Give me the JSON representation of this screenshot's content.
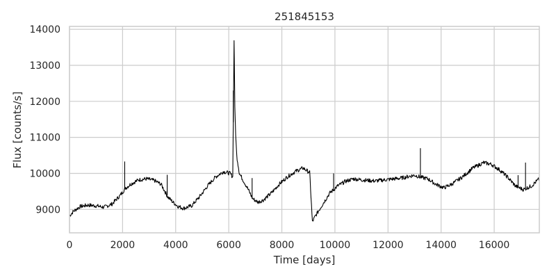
{
  "chart_data": {
    "type": "line",
    "title": "251845153",
    "xlabel": "Time [days]",
    "ylabel": "Flux [counts/s]",
    "xlim": [
      0,
      17700
    ],
    "ylim": [
      8350,
      14080
    ],
    "grid": true,
    "legend": "none",
    "line_color": "#000000",
    "grid_color": "#cccccc",
    "xticks": [
      0,
      2000,
      4000,
      6000,
      8000,
      10000,
      12000,
      14000,
      16000
    ],
    "yticks": [
      9000,
      10000,
      11000,
      12000,
      13000,
      14000
    ],
    "xtick_labels": [
      "0",
      "2000",
      "4000",
      "6000",
      "8000",
      "10000",
      "12000",
      "14000",
      "16000"
    ],
    "ytick_labels": [
      "9000",
      "10000",
      "11000",
      "12000",
      "13000",
      "14000"
    ],
    "series": [
      {
        "x": [
          0,
          150,
          400,
          700,
          1000,
          1300,
          1600,
          1900,
          2100,
          2300,
          2600,
          2900,
          3200,
          3450,
          3700,
          3900,
          4100,
          4300,
          4600,
          4900,
          5200,
          5500,
          5800,
          6050,
          6150,
          6200,
          6230,
          6260,
          6300,
          6400,
          6550,
          6700,
          6900,
          7100,
          7300,
          7600,
          7900,
          8200,
          8500,
          8800,
          9050,
          9150,
          9250,
          9500,
          9800,
          10100,
          10400,
          10700,
          11000,
          11500,
          12000,
          12500,
          13000,
          13200,
          13500,
          13800,
          14100,
          14400,
          14800,
          15200,
          15600,
          15900,
          16200,
          16500,
          16800,
          17100,
          17400,
          17700
        ],
        "y": [
          8820,
          8950,
          9080,
          9120,
          9100,
          9060,
          9150,
          9380,
          9580,
          9700,
          9820,
          9850,
          9800,
          9700,
          9350,
          9200,
          9080,
          9030,
          9100,
          9350,
          9650,
          9900,
          10050,
          10000,
          9900,
          13700,
          11800,
          11100,
          10500,
          10000,
          9800,
          9600,
          9300,
          9200,
          9260,
          9450,
          9700,
          9900,
          10050,
          10150,
          10020,
          8650,
          8800,
          9100,
          9450,
          9650,
          9780,
          9850,
          9820,
          9790,
          9830,
          9870,
          9950,
          9900,
          9850,
          9700,
          9600,
          9700,
          9900,
          10150,
          10300,
          10250,
          10100,
          9900,
          9650,
          9550,
          9650,
          9850
        ]
      }
    ]
  }
}
